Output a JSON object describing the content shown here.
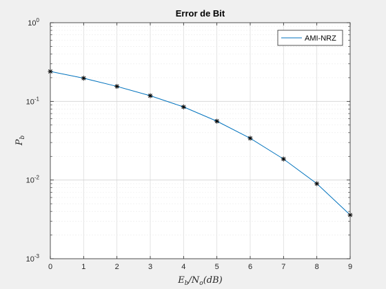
{
  "chart_data": {
    "type": "line",
    "title": "Error de Bit",
    "xlabel": "E_b/N_o(dB)",
    "ylabel": "P_b",
    "x": [
      0,
      1,
      2,
      3,
      4,
      5,
      6,
      7,
      8,
      9
    ],
    "series": [
      {
        "name": "AMI-NRZ",
        "values": [
          0.24,
          0.197,
          0.155,
          0.118,
          0.085,
          0.056,
          0.034,
          0.0185,
          0.009,
          0.0036
        ],
        "line_color": "#0072bd",
        "marker": "asterisk",
        "marker_color": "#000000"
      }
    ],
    "xlim": [
      0,
      9
    ],
    "ylim": [
      0.001,
      1
    ],
    "yscale": "log",
    "xticks": [
      "0",
      "1",
      "2",
      "3",
      "4",
      "5",
      "6",
      "7",
      "8",
      "9"
    ],
    "yticks": [
      {
        "base": "10",
        "exp": "-3"
      },
      {
        "base": "10",
        "exp": "-2"
      },
      {
        "base": "10",
        "exp": "-1"
      },
      {
        "base": "10",
        "exp": "0"
      }
    ],
    "grid": true,
    "legend_position": "top-right"
  }
}
